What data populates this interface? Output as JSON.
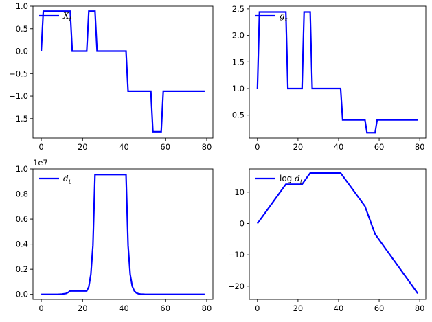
{
  "chart_data": [
    {
      "type": "line",
      "legend": "X_t",
      "legend_position": "upper-left",
      "color": "#0000ff",
      "xlim": [
        -4,
        83
      ],
      "ylim": [
        -1.93,
        1.0
      ],
      "xticks": [
        0,
        20,
        40,
        60,
        80
      ],
      "yticks": [
        1.0,
        0.5,
        0.0,
        -0.5,
        -1.0,
        -1.5
      ],
      "ytick_labels": [
        "1.0",
        "0.5",
        "0.0",
        "−0.5",
        "−1.0",
        "−1.5"
      ],
      "series": [
        {
          "x": [
            0,
            1,
            14,
            15,
            22,
            23,
            26,
            27,
            41,
            42,
            53,
            54,
            58,
            59,
            79
          ],
          "y": [
            0.0,
            0.89,
            0.89,
            0.0,
            0.0,
            0.89,
            0.89,
            0.0,
            0.0,
            -0.89,
            -0.89,
            -1.79,
            -1.79,
            -0.89,
            -0.89
          ]
        }
      ]
    },
    {
      "type": "line",
      "legend": "g_t",
      "legend_position": "upper-left",
      "color": "#0000ff",
      "xlim": [
        -4,
        83
      ],
      "ylim": [
        0.07,
        2.55
      ],
      "xticks": [
        0,
        20,
        40,
        60,
        80
      ],
      "yticks": [
        2.5,
        2.0,
        1.5,
        1.0,
        0.5
      ],
      "ytick_labels": [
        "2.5",
        "2.0",
        "1.5",
        "1.0",
        "0.5"
      ],
      "series": [
        {
          "x": [
            0,
            1,
            14,
            15,
            22,
            23,
            26,
            27,
            41,
            42,
            53,
            54,
            58,
            59,
            79
          ],
          "y": [
            1.0,
            2.44,
            2.44,
            1.0,
            1.0,
            2.44,
            2.44,
            1.0,
            1.0,
            0.41,
            0.41,
            0.17,
            0.17,
            0.41,
            0.41
          ]
        }
      ]
    },
    {
      "type": "line",
      "legend": "d_t",
      "legend_position": "upper-left",
      "color": "#0000ff",
      "y_scale_label": "1e7",
      "xlim": [
        -4,
        83
      ],
      "ylim": [
        -0.04,
        1.0
      ],
      "xticks": [
        0,
        20,
        40,
        60,
        80
      ],
      "yticks": [
        1.0,
        0.8,
        0.6,
        0.4,
        0.2,
        0.0
      ],
      "ytick_labels": [
        "1.0",
        "0.8",
        "0.6",
        "0.4",
        "0.2",
        "0.0"
      ],
      "series": [
        {
          "x": [
            0,
            8,
            10,
            12,
            13,
            14,
            15,
            22,
            23,
            24,
            25,
            26,
            27,
            41,
            42,
            43,
            44,
            45,
            46,
            47,
            48,
            50,
            53,
            79
          ],
          "y": [
            0.0,
            0.0,
            0.002,
            0.007,
            0.015,
            0.027,
            0.027,
            0.027,
            0.06,
            0.16,
            0.39,
            0.955,
            0.955,
            0.955,
            0.39,
            0.16,
            0.065,
            0.027,
            0.011,
            0.005,
            0.002,
            0.0005,
            0.0,
            0.0
          ]
        }
      ]
    },
    {
      "type": "line",
      "legend": "log d_t",
      "legend_position": "upper-left",
      "color": "#0000ff",
      "xlim": [
        -4,
        83
      ],
      "ylim": [
        -24.2,
        17.4
      ],
      "xticks": [
        0,
        20,
        40,
        60,
        80
      ],
      "yticks": [
        10,
        0,
        -10,
        -20
      ],
      "ytick_labels": [
        "10",
        "0",
        "−10",
        "−20"
      ],
      "series": [
        {
          "x": [
            0,
            14,
            22,
            26,
            41,
            53,
            58,
            79
          ],
          "y": [
            0.0,
            12.5,
            12.5,
            16.1,
            16.1,
            5.5,
            -3.4,
            -22.3
          ]
        }
      ]
    }
  ]
}
